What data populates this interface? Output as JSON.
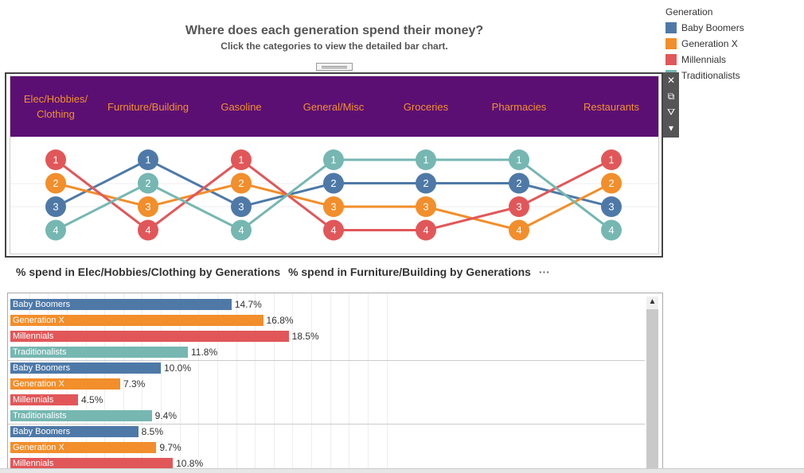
{
  "header": {
    "title": "Where does each generation spend their money?",
    "subtitle": "Click the categories to view the detailed bar chart."
  },
  "legend": {
    "title": "Generation",
    "items": [
      {
        "label": "Baby Boomers",
        "color": "#4e79a7"
      },
      {
        "label": "Generation X",
        "color": "#f28e2b"
      },
      {
        "label": "Millennials",
        "color": "#e15759"
      },
      {
        "label": "Traditionalists",
        "color": "#76b7b2"
      }
    ]
  },
  "toolbar": {
    "close_icon": "✕",
    "popout_icon": "⧉",
    "filter_icon": "⛛",
    "more_icon": "▾"
  },
  "bar_section": {
    "title_1": "% spend in Elec/Hobbies/Clothing by Generations",
    "title_2": "% spend in Furniture/Building by Generations",
    "more": "···"
  },
  "chart_data": [
    {
      "type": "line",
      "subtype": "bump",
      "categories": [
        "Elec/Hobbies/ Clothing",
        "Furniture/Building",
        "Gasoline",
        "General/Misc",
        "Groceries",
        "Pharmacies",
        "Restaurants"
      ],
      "y_reversed": true,
      "ylim": [
        1,
        4
      ],
      "series": [
        {
          "name": "Baby Boomers",
          "color": "#4e79a7",
          "values": [
            3,
            1,
            3,
            2,
            2,
            2,
            3
          ]
        },
        {
          "name": "Generation X",
          "color": "#f28e2b",
          "values": [
            2,
            3,
            2,
            3,
            3,
            4,
            2
          ]
        },
        {
          "name": "Millennials",
          "color": "#e15759",
          "values": [
            1,
            4,
            1,
            4,
            4,
            3,
            1
          ]
        },
        {
          "name": "Traditionalists",
          "color": "#76b7b2",
          "values": [
            4,
            2,
            4,
            1,
            1,
            1,
            4
          ]
        }
      ]
    },
    {
      "type": "bar",
      "orientation": "horizontal",
      "xlim": [
        0,
        25
      ],
      "grid": true,
      "groups": [
        {
          "bars": [
            {
              "label": "Baby Boomers",
              "value": 14.7,
              "value_label": "14.7%",
              "color": "#4e79a7"
            },
            {
              "label": "Generation X",
              "value": 16.8,
              "value_label": "16.8%",
              "color": "#f28e2b"
            },
            {
              "label": "Millennials",
              "value": 18.5,
              "value_label": "18.5%",
              "color": "#e15759"
            },
            {
              "label": "Traditionalists",
              "value": 11.8,
              "value_label": "11.8%",
              "color": "#76b7b2"
            }
          ]
        },
        {
          "bars": [
            {
              "label": "Baby Boomers",
              "value": 10.0,
              "value_label": "10.0%",
              "color": "#4e79a7"
            },
            {
              "label": "Generation X",
              "value": 7.3,
              "value_label": "7.3%",
              "color": "#f28e2b"
            },
            {
              "label": "Millennials",
              "value": 4.5,
              "value_label": "4.5%",
              "color": "#e15759"
            },
            {
              "label": "Traditionalists",
              "value": 9.4,
              "value_label": "9.4%",
              "color": "#76b7b2"
            }
          ]
        },
        {
          "bars": [
            {
              "label": "Baby Boomers",
              "value": 8.5,
              "value_label": "8.5%",
              "color": "#4e79a7"
            },
            {
              "label": "Generation X",
              "value": 9.7,
              "value_label": "9.7%",
              "color": "#f28e2b"
            },
            {
              "label": "Millennials",
              "value": 10.8,
              "value_label": "10.8%",
              "color": "#e15759"
            }
          ]
        }
      ]
    }
  ]
}
